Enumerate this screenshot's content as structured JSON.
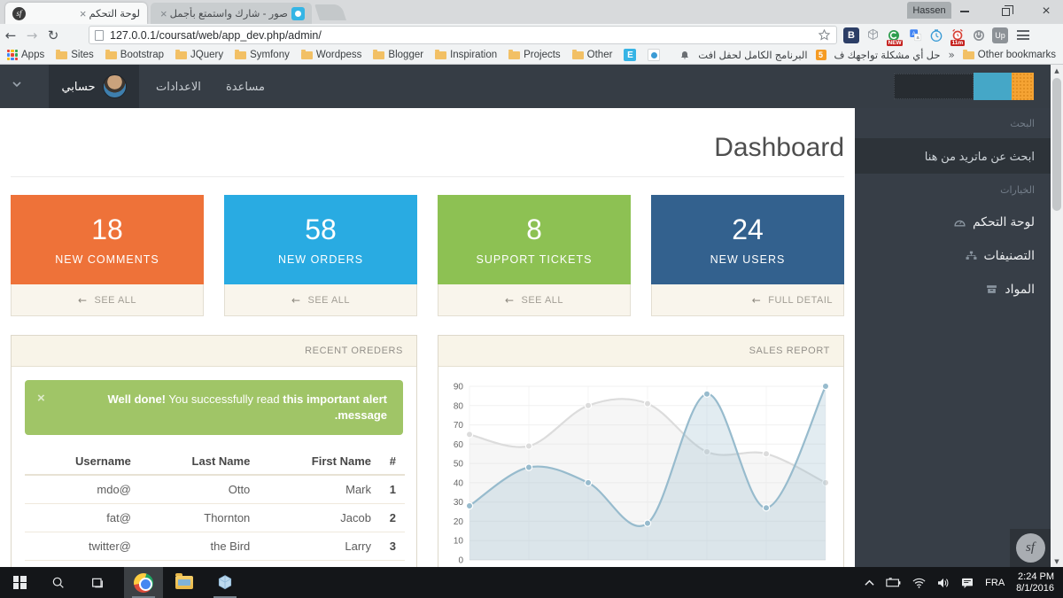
{
  "browser": {
    "tabs": [
      {
        "title": "لوحة التحكم"
      },
      {
        "title": "صور - شارك واستمتع بأجمل"
      }
    ],
    "close_glyph": "×",
    "profile_name": "Hassen",
    "url": "127.0.0.1/coursat/web/app_dev.php/admin/",
    "bookmarks": [
      "Apps",
      "Sites",
      "Bootstrap",
      "JQuery",
      "Symfony",
      "Wordpess",
      "Blogger",
      "Inspiration",
      "Projects",
      "Other"
    ],
    "bookmarks_right": {
      "arabic_bookmark_1": "البرنامج الكامل لحفل افت",
      "badge": "5",
      "arabic_bookmark_2": "حل أي مشكلة تواجهك ف",
      "overflow_chevrons": "»",
      "other_bookmarks": "Other bookmarks"
    },
    "extensions": {
      "b": "B",
      "new_badge": "NEW",
      "alarm_badge": "11m",
      "up": "Up",
      "c": "C"
    }
  },
  "navbar": {
    "account_label": "حسابي",
    "settings_label": "الاعدادات",
    "help_label": "مساعدة"
  },
  "sidebar": {
    "search_section_label": "البحث",
    "search_placeholder": "ابحث عن ماتريد من هنا",
    "options_section_label": "الخيارات",
    "items": [
      {
        "label": "لوحة التحكم"
      },
      {
        "label": "التصنيفات"
      },
      {
        "label": "المواد"
      }
    ]
  },
  "main": {
    "title": "Dashboard",
    "cards": [
      {
        "value": "18",
        "label": "NEW COMMENTS",
        "action": "SEE ALL",
        "color": "#ee7239"
      },
      {
        "value": "58",
        "label": "NEW ORDERS",
        "action": "SEE ALL",
        "color": "#29abe2"
      },
      {
        "value": "8",
        "label": "SUPPORT TICKETS",
        "action": "SEE ALL",
        "color": "#8dc153"
      },
      {
        "value": "24",
        "label": "NEW USERS",
        "action": "FULL DETAIL",
        "color": "#33618e"
      }
    ],
    "recent_orders": {
      "header": "RECENT OREDERS",
      "alert": {
        "bold_lead": "Well done!",
        "middle": " You successfully read ",
        "bold_tail": "this important alert message."
      },
      "table": {
        "headers": [
          "Username",
          "Last Name",
          "First Name",
          "#"
        ],
        "rows": [
          [
            "mdo@",
            "Otto",
            "Mark",
            "1"
          ],
          [
            "fat@",
            "Thornton",
            "Jacob",
            "2"
          ],
          [
            "twitter@",
            "the Bird",
            "Larry",
            "3"
          ]
        ]
      }
    },
    "sales": {
      "header": "SALES REPORT"
    }
  },
  "chart_data": {
    "type": "line",
    "title": "SALES REPORT",
    "x_labels_visible": false,
    "ylim": [
      0,
      90
    ],
    "ytick_step": 10,
    "grid": true,
    "series": [
      {
        "name": "series-gray",
        "color": "rgba(220,220,220,1)",
        "fill": "rgba(220,220,220,0.25)",
        "values": [
          65,
          59,
          80,
          81,
          56,
          55,
          40
        ]
      },
      {
        "name": "series-blue",
        "color": "rgba(151,187,205,1)",
        "fill": "rgba(151,187,205,0.28)",
        "values": [
          28,
          48,
          40,
          19,
          86,
          27,
          90
        ]
      }
    ]
  },
  "taskbar": {
    "language": "FRA",
    "time": "2:24 PM",
    "date": "8/1/2016"
  }
}
